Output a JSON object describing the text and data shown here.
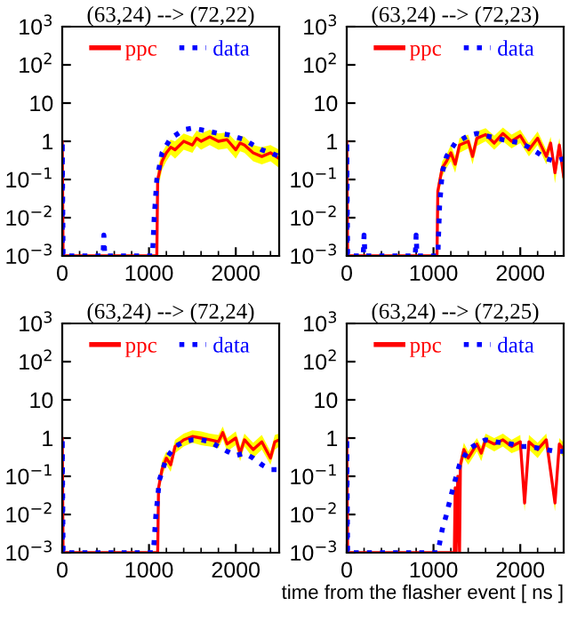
{
  "chart_data": [
    {
      "type": "line",
      "title": "(63,24) --> (72,22)",
      "log": "y",
      "xlim": [
        0,
        2500
      ],
      "ylim": [
        0.001,
        1000
      ],
      "xticks": [
        0,
        1000,
        2000
      ],
      "yticks": [
        {
          "value": 0.001,
          "label": "10$^{−3}$"
        },
        {
          "value": 0.01,
          "label": "10$^{−2}$"
        },
        {
          "value": 0.1,
          "label": "10$^{−1}$"
        },
        1,
        10,
        {
          "value": 100,
          "label": "10$^{2}$"
        },
        {
          "value": 1000,
          "label": "10$^{3}$"
        }
      ],
      "legend": "top",
      "grid": false,
      "series": [
        {
          "name": "ppc",
          "color": "#ff0000",
          "line_style": "solid",
          "x": [
            0,
            0,
            10,
            1090,
            1100,
            1150,
            1200,
            1250,
            1300,
            1400,
            1500,
            1550,
            1600,
            1700,
            1800,
            1900,
            2000,
            2050,
            2100,
            2200,
            2300,
            2400,
            2500
          ],
          "values": [
            0.001,
            1,
            0.001,
            0.001,
            0.1,
            0.3,
            0.5,
            0.7,
            0.6,
            1,
            0.8,
            1.2,
            1,
            1.3,
            1,
            1.1,
            0.6,
            0.9,
            0.8,
            0.5,
            0.4,
            0.5,
            0.35
          ],
          "upper": [
            null,
            null,
            null,
            null,
            0.2,
            0.5,
            0.8,
            1.1,
            1,
            1.6,
            1.3,
            1.9,
            1.6,
            2,
            1.6,
            1.7,
            1,
            1.4,
            1.3,
            0.8,
            0.7,
            0.8,
            0.6
          ],
          "lower": [
            null,
            null,
            null,
            null,
            0.05,
            0.18,
            0.3,
            0.45,
            0.35,
            0.6,
            0.5,
            0.75,
            0.6,
            0.8,
            0.6,
            0.65,
            0.35,
            0.55,
            0.5,
            0.3,
            0.25,
            0.3,
            0.2
          ]
        },
        {
          "name": "data",
          "color": "#0000ff",
          "line_style": "dotted",
          "x": [
            0,
            0,
            10,
            470,
            480,
            490,
            1040,
            1060,
            1090,
            1150,
            1250,
            1400,
            1500,
            1600,
            1700,
            1800,
            1900,
            2000,
            2100,
            2200,
            2300,
            2400,
            2500
          ],
          "values": [
            0.001,
            1,
            0.001,
            0.001,
            0.0035,
            0.001,
            0.001,
            0.01,
            0.1,
            0.5,
            1.2,
            2,
            2.2,
            2,
            1.8,
            1.6,
            1.5,
            1.3,
            1.1,
            0.8,
            0.6,
            0.5,
            0.4
          ]
        }
      ]
    },
    {
      "type": "line",
      "title": "(63,24) --> (72,23)",
      "log": "y",
      "xlim": [
        0,
        2500
      ],
      "ylim": [
        0.001,
        1000
      ],
      "xticks": [
        0,
        1000,
        2000
      ],
      "yticks": [
        {
          "value": 0.001,
          "label": "10$^{−3}$"
        },
        {
          "value": 0.01,
          "label": "10$^{−2}$"
        },
        {
          "value": 0.1,
          "label": "10$^{−1}$"
        },
        1,
        10,
        {
          "value": 100,
          "label": "10$^{2}$"
        },
        {
          "value": 1000,
          "label": "10$^{3}$"
        }
      ],
      "legend": "top",
      "grid": false,
      "series": [
        {
          "name": "ppc",
          "color": "#ff0000",
          "line_style": "solid",
          "x": [
            0,
            0,
            10,
            1040,
            1050,
            1100,
            1150,
            1200,
            1250,
            1300,
            1400,
            1450,
            1500,
            1600,
            1700,
            1800,
            1900,
            2000,
            2100,
            2200,
            2300,
            2350,
            2400,
            2450,
            2500
          ],
          "values": [
            0.001,
            1,
            0.001,
            0.001,
            0.05,
            0.2,
            0.3,
            0.5,
            0.25,
            0.8,
            1,
            0.4,
            1.2,
            1.5,
            0.9,
            1.6,
            1,
            1.4,
            0.6,
            1.2,
            0.4,
            0.9,
            0.15,
            0.8,
            0.12
          ],
          "upper": [
            null,
            null,
            null,
            null,
            0.08,
            0.3,
            0.45,
            0.8,
            0.4,
            1.2,
            1.5,
            0.6,
            1.8,
            2.2,
            1.4,
            2.3,
            1.5,
            2,
            0.9,
            1.8,
            0.6,
            1.3,
            0.25,
            1.2,
            0.2
          ],
          "lower": [
            null,
            null,
            null,
            null,
            0.03,
            0.12,
            0.2,
            0.3,
            0.15,
            0.5,
            0.65,
            0.25,
            0.75,
            1,
            0.6,
            1,
            0.65,
            0.9,
            0.4,
            0.8,
            0.25,
            0.6,
            0.08,
            0.5,
            0.06
          ]
        },
        {
          "name": "data",
          "color": "#0000ff",
          "line_style": "dotted",
          "x": [
            0,
            0,
            10,
            190,
            200,
            210,
            790,
            800,
            810,
            1050,
            1070,
            1100,
            1150,
            1250,
            1400,
            1500,
            1600,
            1800,
            2000,
            2100,
            2200,
            2300,
            2400,
            2500
          ],
          "values": [
            0.001,
            1,
            0.001,
            0.001,
            0.0035,
            0.001,
            0.001,
            0.0035,
            0.001,
            0.001,
            0.02,
            0.15,
            0.4,
            0.9,
            1.4,
            1.6,
            1.4,
            1.1,
            0.9,
            0.7,
            0.5,
            0.35,
            0.3,
            0.35
          ]
        }
      ]
    },
    {
      "type": "line",
      "title": "(63,24) --> (72,24)",
      "log": "y",
      "xlim": [
        0,
        2500
      ],
      "ylim": [
        0.001,
        1000
      ],
      "xticks": [
        0,
        1000,
        2000
      ],
      "yticks": [
        {
          "value": 0.001,
          "label": "10$^{−3}$"
        },
        {
          "value": 0.01,
          "label": "10$^{−2}$"
        },
        {
          "value": 0.1,
          "label": "10$^{−1}$"
        },
        1,
        10,
        {
          "value": 100,
          "label": "10$^{2}$"
        },
        {
          "value": 1000,
          "label": "10$^{3}$"
        }
      ],
      "legend": "top",
      "grid": false,
      "series": [
        {
          "name": "ppc",
          "color": "#ff0000",
          "line_style": "solid",
          "x": [
            0,
            0,
            10,
            1100,
            1110,
            1150,
            1200,
            1250,
            1300,
            1400,
            1500,
            1600,
            1700,
            1800,
            1850,
            1900,
            2000,
            2050,
            2100,
            2200,
            2300,
            2400,
            2450,
            2500
          ],
          "values": [
            0.001,
            1,
            0.001,
            0.001,
            0.05,
            0.15,
            0.3,
            0.2,
            0.6,
            0.9,
            1.1,
            1,
            0.9,
            0.8,
            1.4,
            0.7,
            1,
            0.4,
            0.9,
            0.5,
            0.8,
            0.3,
            0.8,
            0.9
          ],
          "upper": [
            null,
            null,
            null,
            null,
            0.08,
            0.25,
            0.45,
            0.3,
            0.9,
            1.3,
            1.6,
            1.5,
            1.3,
            1.2,
            2,
            1,
            1.5,
            0.6,
            1.3,
            0.75,
            1.2,
            0.45,
            1.2,
            1.3
          ],
          "lower": [
            null,
            null,
            null,
            null,
            0.03,
            0.1,
            0.2,
            0.13,
            0.4,
            0.6,
            0.75,
            0.65,
            0.6,
            0.55,
            0.95,
            0.45,
            0.65,
            0.25,
            0.6,
            0.3,
            0.5,
            0.2,
            0.5,
            0.6
          ]
        },
        {
          "name": "data",
          "color": "#0000ff",
          "line_style": "dotted",
          "x": [
            0,
            0,
            10,
            1050,
            1080,
            1120,
            1200,
            1300,
            1400,
            1500,
            1600,
            1700,
            1800,
            1900,
            2000,
            2100,
            2200,
            2300,
            2400,
            2500
          ],
          "values": [
            0.001,
            1,
            0.001,
            0.001,
            0.01,
            0.08,
            0.3,
            0.6,
            0.8,
            0.9,
            0.9,
            0.8,
            0.6,
            0.45,
            0.35,
            0.4,
            0.3,
            0.2,
            0.15,
            0.15
          ]
        }
      ]
    },
    {
      "type": "line",
      "title": "(63,24) --> (72,25)",
      "xlabel": "time from the flasher event [ ns ]",
      "log": "y",
      "xlim": [
        0,
        2500
      ],
      "ylim": [
        0.001,
        1000
      ],
      "xticks": [
        0,
        1000,
        2000
      ],
      "yticks": [
        {
          "value": 0.001,
          "label": "10$^{−3}$"
        },
        {
          "value": 0.01,
          "label": "10$^{−2}$"
        },
        {
          "value": 0.1,
          "label": "10$^{−1}$"
        },
        1,
        10,
        {
          "value": 100,
          "label": "10$^{2}$"
        },
        {
          "value": 1000,
          "label": "10$^{3}$"
        }
      ],
      "legend": "top",
      "grid": false,
      "series": [
        {
          "name": "ppc",
          "color": "#ff0000",
          "line_style": "solid",
          "x": [
            0,
            0,
            10,
            1240,
            1250,
            1260,
            1280,
            1300,
            1310,
            1350,
            1400,
            1500,
            1550,
            1600,
            1700,
            1800,
            1900,
            2000,
            2050,
            2100,
            2200,
            2300,
            2400,
            2450,
            2500
          ],
          "values": [
            0.001,
            1,
            0.001,
            0.001,
            0.05,
            0.001,
            0.1,
            0.001,
            0.2,
            0.5,
            0.3,
            0.7,
            0.4,
            0.9,
            0.7,
            0.9,
            0.6,
            0.8,
            0.02,
            0.8,
            0.5,
            0.9,
            0.02,
            0.7,
            0.5
          ],
          "upper": [
            null,
            null,
            null,
            null,
            null,
            null,
            null,
            null,
            0.3,
            0.75,
            0.45,
            1,
            0.6,
            1.3,
            1,
            1.3,
            0.9,
            1.2,
            0.03,
            1.2,
            0.75,
            1.3,
            0.03,
            1,
            0.75
          ],
          "lower": [
            null,
            null,
            null,
            null,
            null,
            null,
            null,
            null,
            0.12,
            0.3,
            0.2,
            0.45,
            0.25,
            0.6,
            0.45,
            0.6,
            0.4,
            0.5,
            0.012,
            0.5,
            0.3,
            0.6,
            0.012,
            0.45,
            0.3
          ]
        },
        {
          "name": "data",
          "color": "#0000ff",
          "line_style": "dotted",
          "x": [
            0,
            0,
            10,
            1050,
            1100,
            1150,
            1200,
            1250,
            1300,
            1400,
            1500,
            1600,
            1700,
            1800,
            1900,
            2000,
            2100,
            2200,
            2300,
            2400,
            2500
          ],
          "values": [
            0.001,
            1,
            0.001,
            0.001,
            0.004,
            0.01,
            0.03,
            0.08,
            0.2,
            0.5,
            0.7,
            0.9,
            0.8,
            0.75,
            0.7,
            0.6,
            0.6,
            0.55,
            0.5,
            0.45,
            0.45
          ]
        }
      ]
    }
  ]
}
